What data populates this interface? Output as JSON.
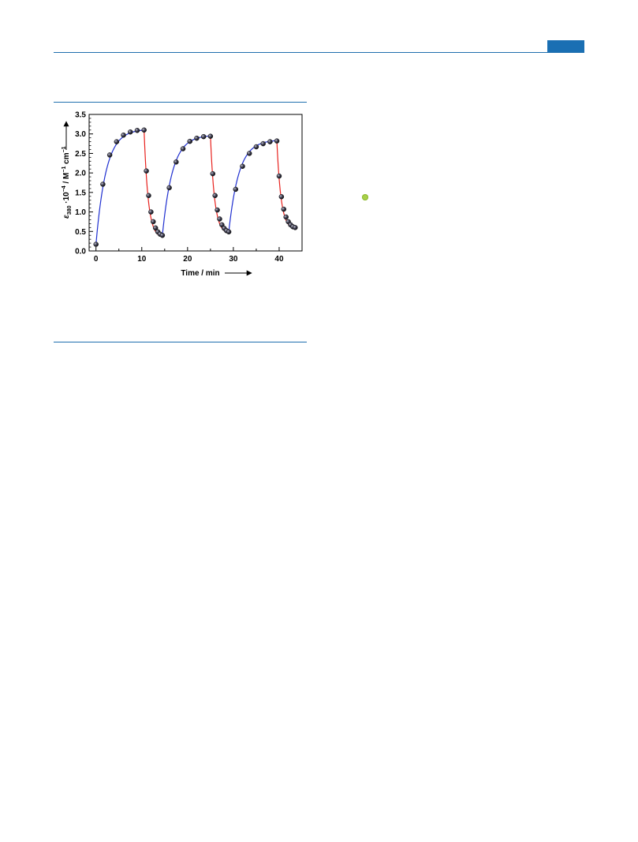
{
  "colors": {
    "header_rule": "#1f6fae",
    "header_tab": "#1a6fb3",
    "marker_dot": "#a8d04a",
    "rise_curve": "#1f2fd0",
    "decay_curve": "#e8221e",
    "point_fill": "#3a3a4a"
  },
  "chart_data": {
    "type": "scatter",
    "xlabel": "Time / min",
    "ylabel": "ε380 ·10⁻⁴ / M⁻¹ cm⁻¹",
    "ylabel_parts": {
      "symbol": "ε",
      "subscript": "380",
      "mid": " ·10",
      "exp1": "−4",
      "mid2": " / M",
      "exp2": "−1",
      "mid3": " cm",
      "exp3": "−1"
    },
    "xlim": [
      -1.5,
      45
    ],
    "ylim": [
      0,
      3.5
    ],
    "x_ticks": [
      0,
      10,
      20,
      30,
      40
    ],
    "x_tick_labels": [
      "0",
      "10",
      "20",
      "30",
      "40"
    ],
    "y_ticks": [
      0,
      0.5,
      1.0,
      1.5,
      2.0,
      2.5,
      3.0,
      3.5
    ],
    "y_tick_labels": [
      "0.0",
      "0.5",
      "1.0",
      "1.5",
      "2.0",
      "2.5",
      "3.0",
      "3.5"
    ],
    "grid": false,
    "legend": "none",
    "points": {
      "x": [
        0,
        1.5,
        3,
        4.5,
        6,
        7.5,
        9,
        10.5,
        11,
        11.5,
        12,
        12.5,
        13,
        13.5,
        14,
        14.5,
        16,
        17.5,
        19,
        20.5,
        22,
        23.5,
        25,
        25.5,
        26,
        26.5,
        27,
        27.5,
        28,
        28.5,
        29,
        30.5,
        32,
        33.5,
        35,
        36.5,
        38,
        39.5,
        40,
        40.5,
        41,
        41.5,
        42,
        42.5,
        43,
        43.5
      ],
      "y": [
        0.17,
        1.71,
        2.46,
        2.8,
        2.97,
        3.05,
        3.09,
        3.1,
        2.05,
        1.42,
        1.0,
        0.75,
        0.59,
        0.49,
        0.43,
        0.4,
        1.62,
        2.28,
        2.62,
        2.81,
        2.89,
        2.93,
        2.94,
        1.98,
        1.42,
        1.05,
        0.82,
        0.67,
        0.58,
        0.52,
        0.49,
        1.58,
        2.17,
        2.5,
        2.67,
        2.75,
        2.8,
        2.82,
        1.92,
        1.39,
        1.07,
        0.87,
        0.75,
        0.67,
        0.62,
        0.6
      ]
    },
    "segments": [
      {
        "kind": "rise",
        "color": "#1f2fd0",
        "x_start": 0,
        "x_end": 10.5,
        "y_start": 0.17,
        "y_end": 3.1,
        "tau": 2.2
      },
      {
        "kind": "decay",
        "color": "#e8221e",
        "x_start": 10.5,
        "x_end": 14.5,
        "y_start": 3.1,
        "y_end": 0.36,
        "tau": 0.9
      },
      {
        "kind": "rise",
        "color": "#1f2fd0",
        "x_start": 14.5,
        "x_end": 25,
        "y_start": 0.4,
        "y_end": 2.95,
        "tau": 2.2
      },
      {
        "kind": "decay",
        "color": "#e8221e",
        "x_start": 25,
        "x_end": 29,
        "y_start": 2.94,
        "y_end": 0.46,
        "tau": 0.9
      },
      {
        "kind": "rise",
        "color": "#1f2fd0",
        "x_start": 29,
        "x_end": 39.5,
        "y_start": 0.49,
        "y_end": 2.83,
        "tau": 2.2
      },
      {
        "kind": "decay",
        "color": "#e8221e",
        "x_start": 39.5,
        "x_end": 43.5,
        "y_start": 2.82,
        "y_end": 0.57,
        "tau": 0.9
      }
    ]
  }
}
